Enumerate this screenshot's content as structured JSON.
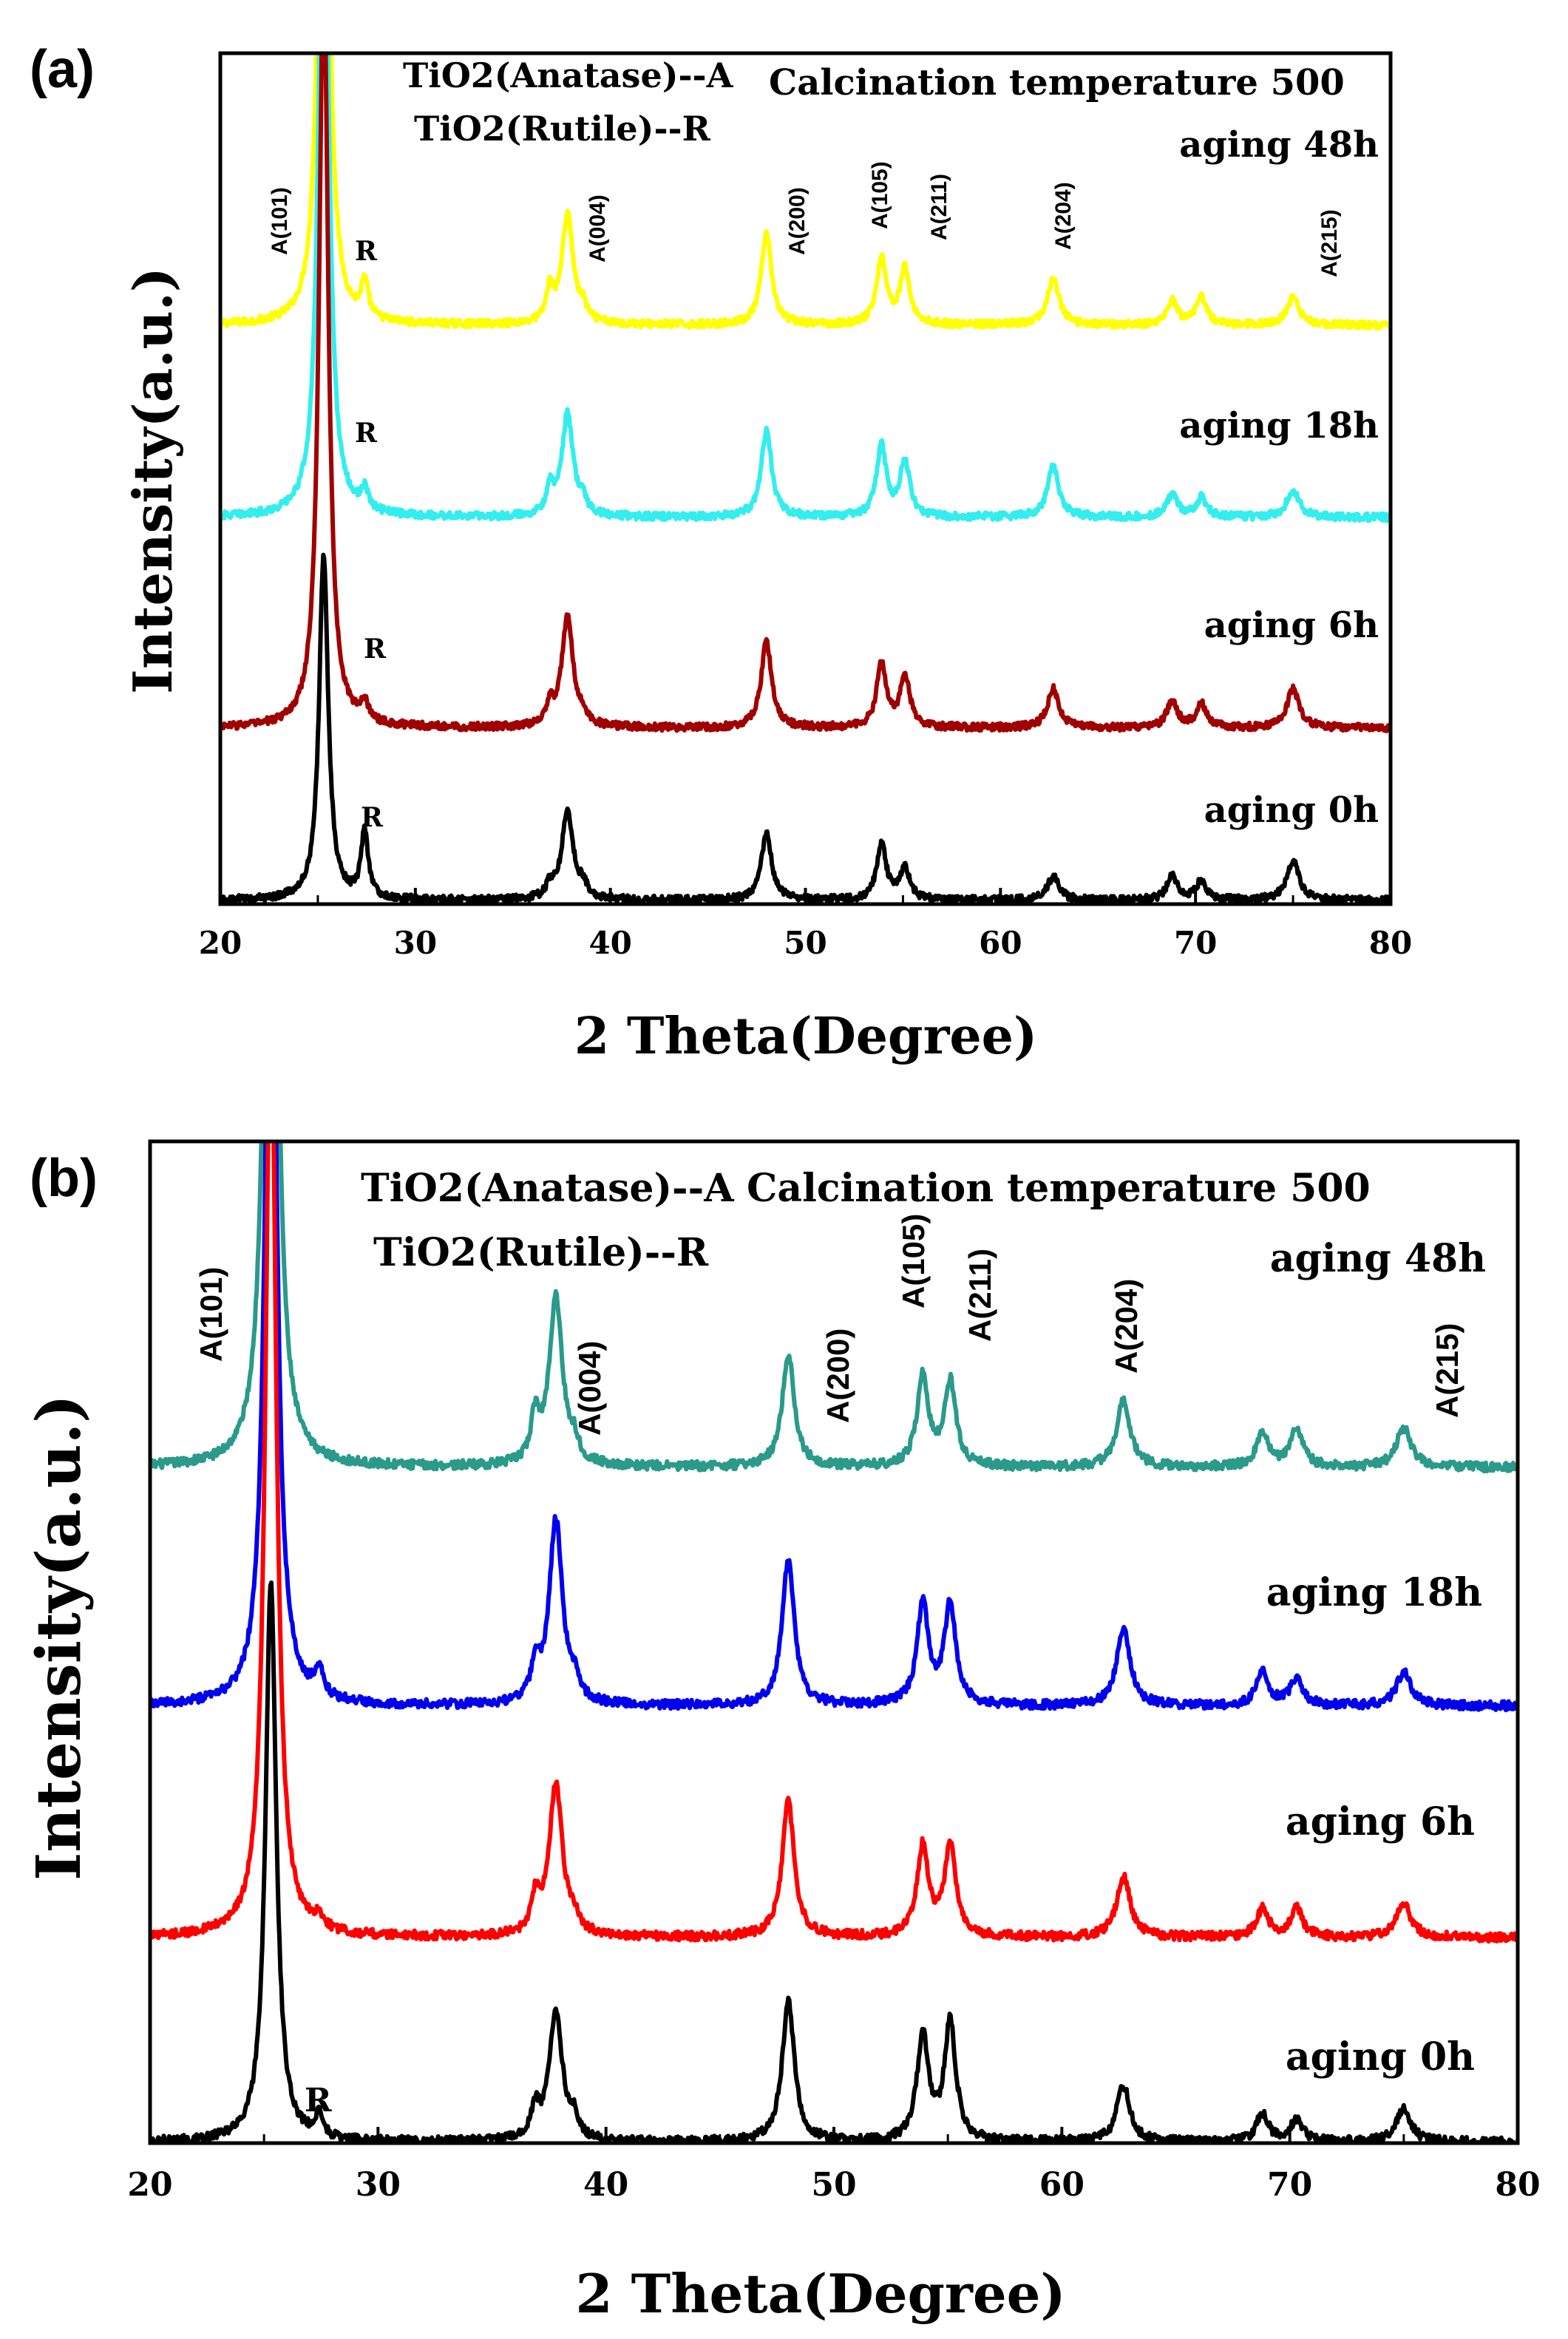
{
  "chart_data": [
    {
      "panel_label": "(a)",
      "type": "line",
      "xlabel": "2 Theta(Degree)",
      "ylabel": "Intensity(a.u.)",
      "xlim": [
        20,
        80
      ],
      "xticks": [
        "20",
        "30",
        "40",
        "50",
        "60",
        "70",
        "80"
      ],
      "legend_lines": [
        "TiO2(Anatase)--A",
        "TiO2(Rutile)--R"
      ],
      "annotation": "Calcination temperature 500",
      "rutile_label": "R",
      "peaks": [
        {
          "label": "A(101)",
          "x": 25.3
        },
        {
          "label": "A(004)",
          "x": 37.8
        },
        {
          "label": "A(200)",
          "x": 48.0
        },
        {
          "label": "A(105)",
          "x": 53.9
        },
        {
          "label": "A(211)",
          "x": 55.1
        },
        {
          "label": "A(204)",
          "x": 62.7
        },
        {
          "label": "A(215)",
          "x": 75.0
        }
      ],
      "series": [
        {
          "name": "aging 48h",
          "color": "#ffff00",
          "peak_heights": [
            2.0,
            0.09,
            0.28,
            0.23,
            0.17,
            0.14,
            0.12,
            0.06,
            0.07,
            0.08,
            0.03,
            0.07
          ]
        },
        {
          "name": "aging 18h",
          "color": "#33eeee",
          "peak_heights": [
            2.0,
            0.05,
            0.26,
            0.22,
            0.18,
            0.14,
            0.13,
            0.06,
            0.05,
            0.07,
            0.03,
            0.07
          ]
        },
        {
          "name": "aging 6h",
          "color": "#a00000",
          "peak_heights": [
            1.95,
            0.05,
            0.28,
            0.22,
            0.16,
            0.13,
            0.1,
            0.07,
            0.06,
            0.05,
            0.02,
            0.1
          ]
        },
        {
          "name": "aging 0h",
          "color": "#000000",
          "peak_heights": [
            0.88,
            0.17,
            0.23,
            0.17,
            0.14,
            0.08,
            0.06,
            0.06,
            0.05,
            0.03,
            0.03,
            0.1
          ]
        }
      ]
    },
    {
      "panel_label": "(b)",
      "type": "line",
      "xlabel": "2 Theta(Degree)",
      "ylabel": "Intensity(a.u.)",
      "xlim": [
        20,
        80
      ],
      "xticks": [
        "20",
        "30",
        "40",
        "50",
        "60",
        "70",
        "80"
      ],
      "legend_lines": [
        "TiO2(Anatase)--A",
        "TiO2(Rutile)--R"
      ],
      "annotation": "Calcination temperature 500",
      "rutile_label": "R",
      "peaks": [
        {
          "label": "A(101)",
          "x": 25.3
        },
        {
          "label": "A(004)",
          "x": 37.8
        },
        {
          "label": "A(200)",
          "x": 48.0
        },
        {
          "label": "A(105)",
          "x": 53.9
        },
        {
          "label": "A(211)",
          "x": 55.1
        },
        {
          "label": "A(204)",
          "x": 62.7
        },
        {
          "label": "A(215)",
          "x": 75.0
        }
      ],
      "series": [
        {
          "name": "aging 48h",
          "color": "#2a9a8a",
          "peak_heights": [
            1.9,
            0.0,
            0.3,
            0.2,
            0.16,
            0.15,
            0.12,
            0.06,
            0.07,
            0.08,
            0.03,
            0.07
          ]
        },
        {
          "name": "aging 18h",
          "color": "#0000ee",
          "peak_heights": [
            1.7,
            0.05,
            0.33,
            0.26,
            0.18,
            0.18,
            0.14,
            0.06,
            0.05,
            0.06,
            0.03,
            0.06
          ]
        },
        {
          "name": "aging 6h",
          "color": "#ff0000",
          "peak_heights": [
            1.7,
            0.02,
            0.27,
            0.24,
            0.16,
            0.16,
            0.11,
            0.05,
            0.05,
            0.06,
            0.02,
            0.06
          ]
        },
        {
          "name": "aging 0h",
          "color": "#000000",
          "peak_heights": [
            1.0,
            0.04,
            0.23,
            0.25,
            0.19,
            0.21,
            0.1,
            0.05,
            0.04,
            0.05,
            0.03,
            0.06
          ]
        }
      ]
    }
  ]
}
